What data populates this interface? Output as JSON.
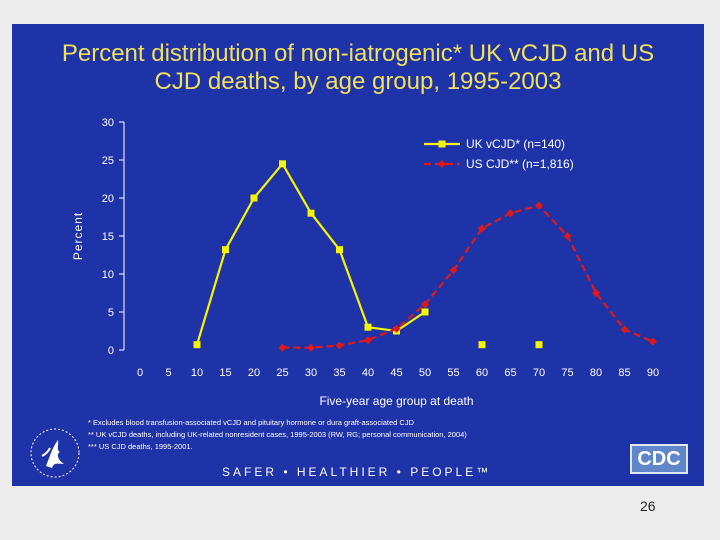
{
  "slide": {
    "title_line1": "Percent distribution of non-iatrogenic* UK vCJD and US",
    "title_line2": "CJD deaths, by age group, 1995-2003",
    "footnotes": [
      "*  Excludes blood transfusion-associated vCJD and pituitary hormone or dura graft-associated CJD",
      "** UK vCJD deaths, including UK-related nonresident cases, 1995-2003 (RW, RG; personal communication, 2004)",
      "*** US CJD deaths, 1995-2001."
    ],
    "tagline": "SAFER • HEALTHIER • PEOPLE™",
    "cdc_logo_text": "CDC",
    "page_number": "26"
  },
  "colors": {
    "background": "#1f33a8",
    "title": "#f2df5a",
    "uk_series": "#f5f500",
    "us_series": "#e01818",
    "text": "#ffffff"
  },
  "chart_data": {
    "type": "line",
    "title": "Percent distribution of non-iatrogenic* UK vCJD and US CJD deaths, by age group, 1995-2003",
    "xlabel": "Five-year age group at death",
    "ylabel": "Percent",
    "x_ticks": [
      0,
      5,
      10,
      15,
      20,
      25,
      30,
      35,
      40,
      45,
      50,
      55,
      60,
      65,
      70,
      75,
      80,
      85,
      90
    ],
    "y_ticks": [
      0,
      5,
      10,
      15,
      20,
      25,
      30
    ],
    "xlim": [
      0,
      90
    ],
    "ylim": [
      0,
      30
    ],
    "grid": false,
    "legend_position": "top-right",
    "series": [
      {
        "name": "UK vCJD* (n=140)",
        "color": "#f5f500",
        "style": "solid",
        "marker": "square",
        "x": [
          10,
          15,
          20,
          25,
          30,
          35,
          40,
          45,
          50,
          60,
          70
        ],
        "y": [
          0.7,
          13.2,
          20,
          24.5,
          18,
          13.2,
          3,
          2.5,
          5,
          0.7,
          0.7
        ],
        "connected_through_x": 50
      },
      {
        "name": "US CJD** (n=1,816)",
        "color": "#e01818",
        "style": "dashed",
        "marker": "diamond",
        "x": [
          25,
          30,
          35,
          40,
          45,
          50,
          55,
          60,
          65,
          70,
          75,
          80,
          85,
          90
        ],
        "y": [
          0.3,
          0.3,
          0.6,
          1.3,
          2.8,
          6,
          10.5,
          16,
          18,
          19,
          15,
          7.5,
          2.7,
          1.1
        ]
      }
    ]
  }
}
